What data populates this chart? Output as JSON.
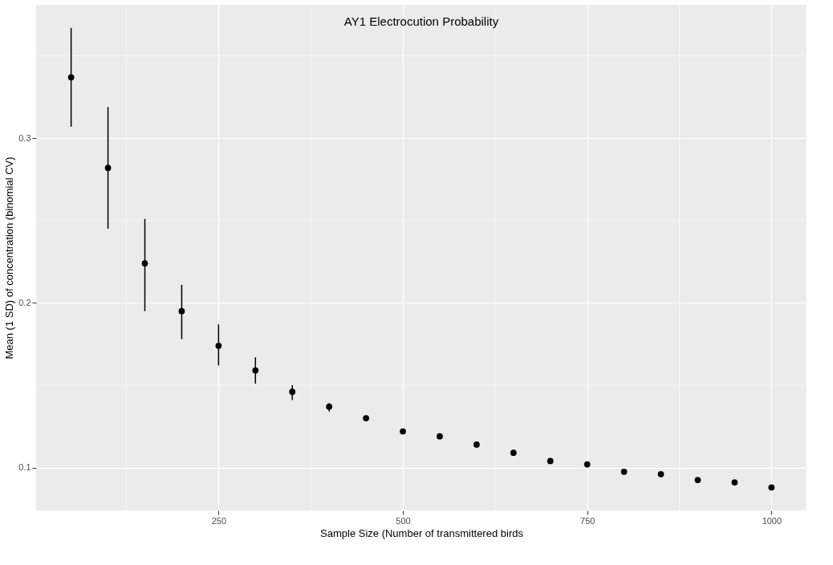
{
  "chart_data": {
    "type": "scatter",
    "title": "AY1 Electrocution Probability",
    "xlabel": "Sample Size (Number of transmittered birds",
    "ylabel": "Mean (1 SD) of concentration (binomial CV)",
    "x": [
      50,
      100,
      150,
      200,
      250,
      300,
      350,
      400,
      450,
      500,
      550,
      600,
      650,
      700,
      750,
      800,
      850,
      900,
      950,
      1000
    ],
    "series": [
      {
        "color": "#000000",
        "values": [
          0.337,
          0.282,
          0.224,
          0.195,
          0.174,
          0.159,
          0.146,
          0.137,
          0.13,
          0.122,
          0.119,
          0.114,
          0.109,
          0.104,
          0.102,
          0.0975,
          0.096,
          0.0925,
          0.091,
          0.088
        ],
        "errors": [
          [
            0.307,
            0.367
          ],
          [
            0.245,
            0.319
          ],
          [
            0.195,
            0.251
          ],
          [
            0.178,
            0.211
          ],
          [
            0.162,
            0.187
          ],
          [
            0.151,
            0.167
          ],
          [
            0.141,
            0.15
          ],
          [
            0.134,
            0.139
          ],
          null,
          null,
          null,
          null,
          null,
          null,
          null,
          null,
          null,
          null,
          null,
          null
        ]
      }
    ],
    "xlim": [
      2.5,
      1047.5
    ],
    "xticks": [
      250,
      500,
      750,
      1000
    ],
    "ylim": [
      0.074,
      0.381
    ],
    "yticks": [
      0.1,
      0.2,
      0.3
    ],
    "grid": true,
    "marker": "circle"
  }
}
